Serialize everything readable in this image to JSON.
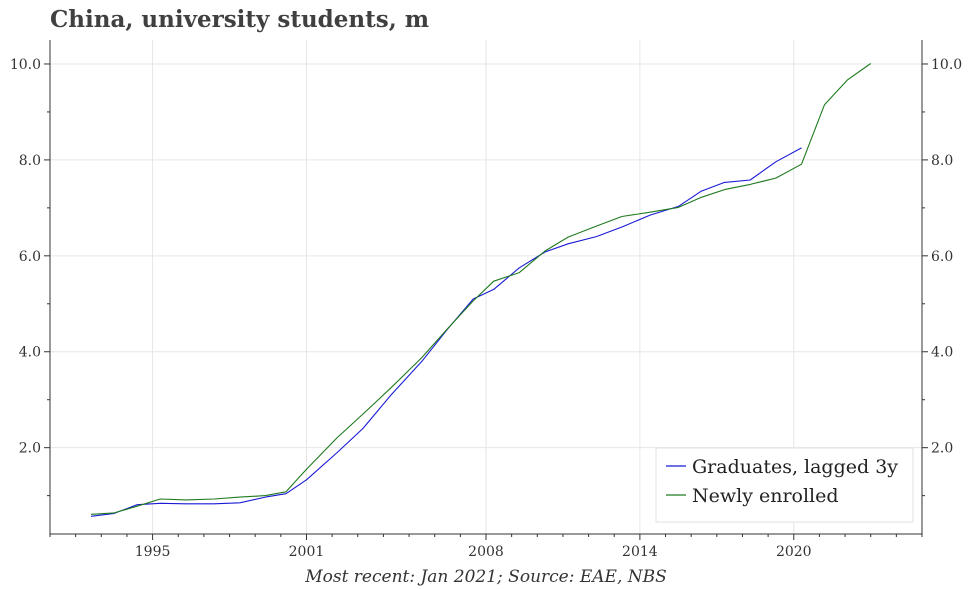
{
  "chart_data": {
    "type": "line",
    "title": "China, university students, m",
    "caption": "Most recent: Jan 2021; Source: EAE, NBS",
    "xlabel": "",
    "ylabel": "",
    "xlim": [
      1991.0,
      2025.0
    ],
    "ylim": [
      0.2,
      10.5
    ],
    "x_ticks": [
      1995,
      2001,
      2008,
      2014,
      2020
    ],
    "y_ticks": [
      2.0,
      4.0,
      6.0,
      8.0,
      10.0
    ],
    "y_tick_labels": [
      "2.0",
      "4.0",
      "6.0",
      "8.0",
      "10.0"
    ],
    "grid": true,
    "legend": "bottom-right",
    "colors": {
      "graduates": "#1a1ad6",
      "enrolled": "#1f7a1f"
    },
    "series": [
      {
        "name": "Graduates, lagged 3y",
        "color": "#1a1ad6",
        "points": [
          [
            1992.6,
            0.57
          ],
          [
            1993.5,
            0.63
          ],
          [
            1994.4,
            0.81
          ],
          [
            1995.3,
            0.84
          ],
          [
            1996.3,
            0.83
          ],
          [
            1997.4,
            0.83
          ],
          [
            1998.4,
            0.85
          ],
          [
            1999.4,
            0.97
          ],
          [
            2000.2,
            1.04
          ],
          [
            2001.0,
            1.33
          ],
          [
            2002.2,
            1.9
          ],
          [
            2003.2,
            2.4
          ],
          [
            2004.3,
            3.1
          ],
          [
            2005.5,
            3.8
          ],
          [
            2006.5,
            4.47
          ],
          [
            2007.5,
            5.1
          ],
          [
            2008.3,
            5.3
          ],
          [
            2009.3,
            5.75
          ],
          [
            2010.3,
            6.08
          ],
          [
            2011.2,
            6.25
          ],
          [
            2012.3,
            6.4
          ],
          [
            2013.3,
            6.6
          ],
          [
            2014.4,
            6.85
          ],
          [
            2015.5,
            7.03
          ],
          [
            2016.4,
            7.35
          ],
          [
            2017.3,
            7.53
          ],
          [
            2018.3,
            7.58
          ],
          [
            2019.3,
            7.96
          ],
          [
            2020.3,
            8.25
          ]
        ]
      },
      {
        "name": "Newly enrolled",
        "color": "#1f7a1f",
        "points": [
          [
            1992.6,
            0.61
          ],
          [
            1993.5,
            0.64
          ],
          [
            1994.4,
            0.78
          ],
          [
            1995.3,
            0.93
          ],
          [
            1996.3,
            0.91
          ],
          [
            1997.4,
            0.93
          ],
          [
            1998.4,
            0.97
          ],
          [
            1999.4,
            1.0
          ],
          [
            2000.2,
            1.08
          ],
          [
            2001.0,
            1.55
          ],
          [
            2002.2,
            2.21
          ],
          [
            2003.2,
            2.7
          ],
          [
            2004.3,
            3.25
          ],
          [
            2005.5,
            3.88
          ],
          [
            2006.5,
            4.48
          ],
          [
            2007.5,
            5.06
          ],
          [
            2008.3,
            5.47
          ],
          [
            2009.3,
            5.65
          ],
          [
            2010.3,
            6.1
          ],
          [
            2011.2,
            6.39
          ],
          [
            2012.3,
            6.62
          ],
          [
            2013.3,
            6.82
          ],
          [
            2014.4,
            6.91
          ],
          [
            2015.5,
            7.01
          ],
          [
            2016.4,
            7.22
          ],
          [
            2017.3,
            7.38
          ],
          [
            2018.3,
            7.49
          ],
          [
            2019.3,
            7.62
          ],
          [
            2020.3,
            7.91
          ],
          [
            2021.2,
            9.15
          ],
          [
            2022.1,
            9.67
          ],
          [
            2023.0,
            10.01
          ]
        ]
      }
    ]
  }
}
